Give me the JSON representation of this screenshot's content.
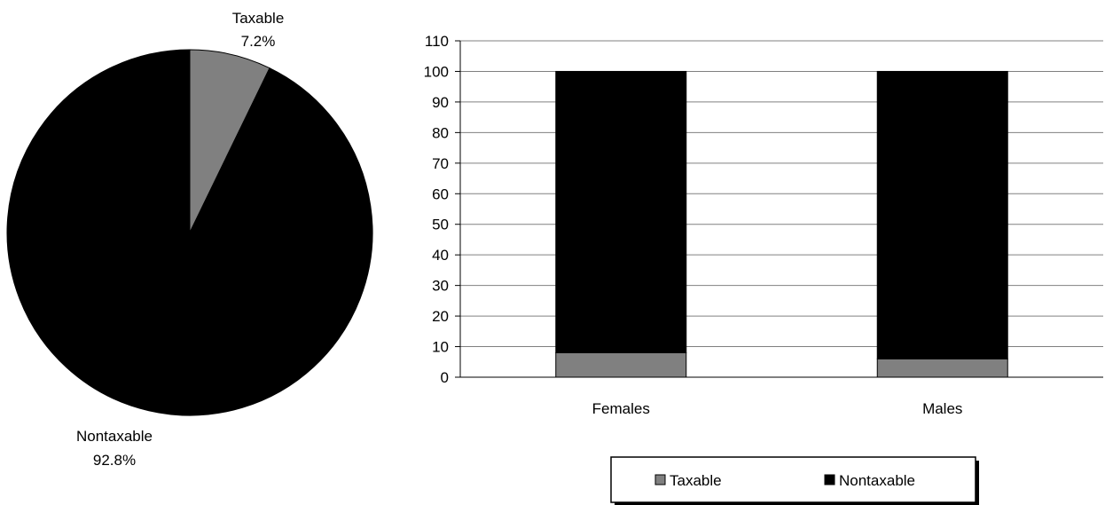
{
  "chart_data": [
    {
      "type": "pie",
      "slices": [
        {
          "label": "Taxable",
          "value": 7.2,
          "display": "7.2%",
          "color": "#808080"
        },
        {
          "label": "Nontaxable",
          "value": 92.8,
          "display": "92.8%",
          "color": "#000000"
        }
      ]
    },
    {
      "type": "bar",
      "stacked": true,
      "categories": [
        "Females",
        "Males"
      ],
      "series": [
        {
          "name": "Taxable",
          "values": [
            8,
            6
          ],
          "color": "#808080"
        },
        {
          "name": "Nontaxable",
          "values": [
            92,
            94
          ],
          "color": "#000000"
        }
      ],
      "ylim": [
        0,
        110
      ],
      "yticks": [
        0,
        10,
        20,
        30,
        40,
        50,
        60,
        70,
        80,
        90,
        100,
        110
      ],
      "grid": true,
      "legend_position": "bottom"
    }
  ]
}
